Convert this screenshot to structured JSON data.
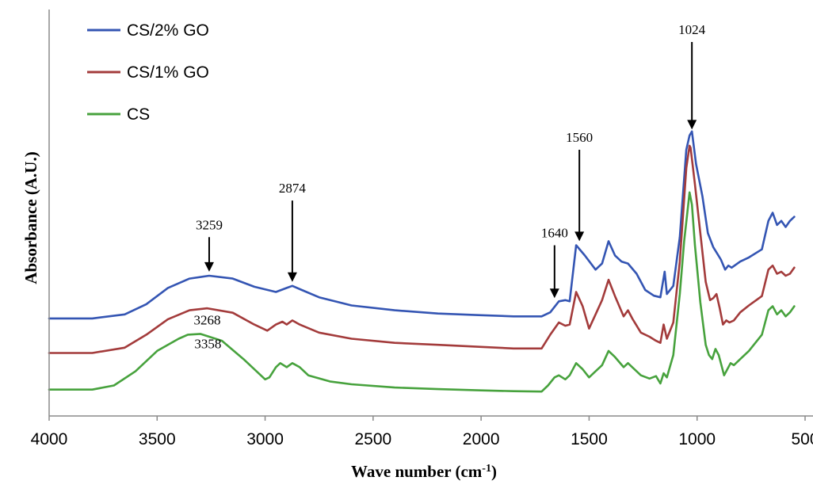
{
  "chart_data": {
    "type": "line",
    "xlabel": "Wave number  (cm",
    "xlabel_sup": "-1",
    "xlabel_close": ")",
    "ylabel": "Absorbance  (A.U.)",
    "xlim": [
      4000,
      500
    ],
    "x_reversed": true,
    "y_ticks_shown": false,
    "grid": false,
    "legend_position": "top-left",
    "x_ticks": [
      {
        "value": 4000,
        "label": "4000"
      },
      {
        "value": 3500,
        "label": "3500"
      },
      {
        "value": 3000,
        "label": "3000"
      },
      {
        "value": 2500,
        "label": "2500"
      },
      {
        "value": 2000,
        "label": "2000"
      },
      {
        "value": 1500,
        "label": "1500"
      },
      {
        "value": 1000,
        "label": "1000"
      },
      {
        "value": 500,
        "label": "500"
      }
    ],
    "series": [
      {
        "name": "CS/2% GO",
        "color": "#3455b3",
        "points": [
          [
            4000,
            0.24
          ],
          [
            3800,
            0.24
          ],
          [
            3650,
            0.25
          ],
          [
            3550,
            0.275
          ],
          [
            3450,
            0.315
          ],
          [
            3350,
            0.338
          ],
          [
            3259,
            0.345
          ],
          [
            3150,
            0.338
          ],
          [
            3050,
            0.318
          ],
          [
            2950,
            0.305
          ],
          [
            2900,
            0.315
          ],
          [
            2874,
            0.32
          ],
          [
            2830,
            0.31
          ],
          [
            2750,
            0.292
          ],
          [
            2600,
            0.272
          ],
          [
            2400,
            0.26
          ],
          [
            2200,
            0.252
          ],
          [
            2000,
            0.248
          ],
          [
            1850,
            0.245
          ],
          [
            1720,
            0.245
          ],
          [
            1680,
            0.255
          ],
          [
            1640,
            0.282
          ],
          [
            1610,
            0.285
          ],
          [
            1590,
            0.282
          ],
          [
            1560,
            0.42
          ],
          [
            1520,
            0.395
          ],
          [
            1470,
            0.36
          ],
          [
            1440,
            0.375
          ],
          [
            1410,
            0.43
          ],
          [
            1380,
            0.395
          ],
          [
            1350,
            0.38
          ],
          [
            1320,
            0.375
          ],
          [
            1280,
            0.35
          ],
          [
            1240,
            0.31
          ],
          [
            1200,
            0.296
          ],
          [
            1170,
            0.292
          ],
          [
            1150,
            0.355
          ],
          [
            1140,
            0.3
          ],
          [
            1110,
            0.32
          ],
          [
            1080,
            0.44
          ],
          [
            1050,
            0.655
          ],
          [
            1035,
            0.69
          ],
          [
            1024,
            0.7
          ],
          [
            1005,
            0.62
          ],
          [
            975,
            0.54
          ],
          [
            950,
            0.45
          ],
          [
            925,
            0.415
          ],
          [
            905,
            0.398
          ],
          [
            890,
            0.385
          ],
          [
            870,
            0.36
          ],
          [
            855,
            0.37
          ],
          [
            840,
            0.365
          ],
          [
            800,
            0.38
          ],
          [
            760,
            0.39
          ],
          [
            700,
            0.41
          ],
          [
            670,
            0.48
          ],
          [
            650,
            0.5
          ],
          [
            630,
            0.47
          ],
          [
            610,
            0.48
          ],
          [
            590,
            0.465
          ],
          [
            570,
            0.48
          ],
          [
            550,
            0.49
          ]
        ]
      },
      {
        "name": "CS/1% GO",
        "color": "#a33b3b",
        "points": [
          [
            4000,
            0.155
          ],
          [
            3800,
            0.155
          ],
          [
            3650,
            0.168
          ],
          [
            3550,
            0.2
          ],
          [
            3450,
            0.238
          ],
          [
            3350,
            0.26
          ],
          [
            3268,
            0.265
          ],
          [
            3150,
            0.254
          ],
          [
            3050,
            0.225
          ],
          [
            2990,
            0.21
          ],
          [
            2950,
            0.225
          ],
          [
            2920,
            0.232
          ],
          [
            2900,
            0.225
          ],
          [
            2874,
            0.235
          ],
          [
            2840,
            0.225
          ],
          [
            2750,
            0.205
          ],
          [
            2600,
            0.19
          ],
          [
            2400,
            0.18
          ],
          [
            2200,
            0.175
          ],
          [
            2000,
            0.17
          ],
          [
            1850,
            0.166
          ],
          [
            1720,
            0.166
          ],
          [
            1680,
            0.2
          ],
          [
            1640,
            0.23
          ],
          [
            1610,
            0.222
          ],
          [
            1590,
            0.225
          ],
          [
            1560,
            0.305
          ],
          [
            1530,
            0.27
          ],
          [
            1500,
            0.215
          ],
          [
            1470,
            0.25
          ],
          [
            1440,
            0.285
          ],
          [
            1410,
            0.335
          ],
          [
            1380,
            0.295
          ],
          [
            1340,
            0.245
          ],
          [
            1320,
            0.26
          ],
          [
            1300,
            0.24
          ],
          [
            1260,
            0.205
          ],
          [
            1220,
            0.195
          ],
          [
            1190,
            0.185
          ],
          [
            1170,
            0.18
          ],
          [
            1155,
            0.225
          ],
          [
            1140,
            0.19
          ],
          [
            1110,
            0.23
          ],
          [
            1080,
            0.38
          ],
          [
            1050,
            0.61
          ],
          [
            1035,
            0.665
          ],
          [
            1030,
            0.66
          ],
          [
            1010,
            0.57
          ],
          [
            985,
            0.45
          ],
          [
            960,
            0.33
          ],
          [
            940,
            0.285
          ],
          [
            925,
            0.29
          ],
          [
            910,
            0.3
          ],
          [
            895,
            0.265
          ],
          [
            880,
            0.225
          ],
          [
            865,
            0.235
          ],
          [
            850,
            0.23
          ],
          [
            830,
            0.235
          ],
          [
            800,
            0.255
          ],
          [
            760,
            0.272
          ],
          [
            700,
            0.295
          ],
          [
            670,
            0.36
          ],
          [
            650,
            0.37
          ],
          [
            630,
            0.35
          ],
          [
            610,
            0.355
          ],
          [
            590,
            0.345
          ],
          [
            570,
            0.35
          ],
          [
            550,
            0.365
          ]
        ]
      },
      {
        "name": "CS",
        "color": "#47a23d",
        "points": [
          [
            4000,
            0.065
          ],
          [
            3800,
            0.065
          ],
          [
            3700,
            0.075
          ],
          [
            3600,
            0.11
          ],
          [
            3500,
            0.16
          ],
          [
            3400,
            0.19
          ],
          [
            3358,
            0.2
          ],
          [
            3300,
            0.202
          ],
          [
            3200,
            0.185
          ],
          [
            3100,
            0.14
          ],
          [
            3000,
            0.09
          ],
          [
            2980,
            0.095
          ],
          [
            2950,
            0.12
          ],
          [
            2930,
            0.13
          ],
          [
            2900,
            0.12
          ],
          [
            2874,
            0.13
          ],
          [
            2840,
            0.12
          ],
          [
            2800,
            0.1
          ],
          [
            2700,
            0.085
          ],
          [
            2600,
            0.078
          ],
          [
            2400,
            0.07
          ],
          [
            2200,
            0.066
          ],
          [
            2000,
            0.063
          ],
          [
            1850,
            0.061
          ],
          [
            1720,
            0.06
          ],
          [
            1690,
            0.075
          ],
          [
            1660,
            0.095
          ],
          [
            1640,
            0.1
          ],
          [
            1610,
            0.09
          ],
          [
            1590,
            0.1
          ],
          [
            1560,
            0.13
          ],
          [
            1530,
            0.115
          ],
          [
            1500,
            0.095
          ],
          [
            1470,
            0.11
          ],
          [
            1440,
            0.125
          ],
          [
            1410,
            0.16
          ],
          [
            1380,
            0.145
          ],
          [
            1340,
            0.12
          ],
          [
            1320,
            0.13
          ],
          [
            1300,
            0.12
          ],
          [
            1260,
            0.1
          ],
          [
            1220,
            0.092
          ],
          [
            1190,
            0.098
          ],
          [
            1170,
            0.08
          ],
          [
            1155,
            0.105
          ],
          [
            1140,
            0.095
          ],
          [
            1110,
            0.15
          ],
          [
            1080,
            0.3
          ],
          [
            1060,
            0.43
          ],
          [
            1045,
            0.5
          ],
          [
            1035,
            0.55
          ],
          [
            1024,
            0.52
          ],
          [
            1010,
            0.42
          ],
          [
            985,
            0.28
          ],
          [
            960,
            0.175
          ],
          [
            945,
            0.15
          ],
          [
            930,
            0.14
          ],
          [
            915,
            0.165
          ],
          [
            900,
            0.15
          ],
          [
            885,
            0.12
          ],
          [
            875,
            0.1
          ],
          [
            860,
            0.115
          ],
          [
            845,
            0.13
          ],
          [
            830,
            0.125
          ],
          [
            800,
            0.14
          ],
          [
            760,
            0.16
          ],
          [
            700,
            0.2
          ],
          [
            670,
            0.26
          ],
          [
            650,
            0.27
          ],
          [
            630,
            0.25
          ],
          [
            610,
            0.26
          ],
          [
            590,
            0.245
          ],
          [
            570,
            0.255
          ],
          [
            550,
            0.27
          ]
        ]
      }
    ],
    "annotations": [
      {
        "label": "3259",
        "x": 3259,
        "arrow_tip_y": 0.355,
        "arrow_top_y": 0.44
      },
      {
        "label": "2874",
        "x": 2874,
        "arrow_tip_y": 0.33,
        "arrow_top_y": 0.53
      },
      {
        "label": "1640",
        "x": 1660,
        "arrow_tip_y": 0.29,
        "arrow_top_y": 0.42
      },
      {
        "label": "1560",
        "x": 1545,
        "arrow_tip_y": 0.43,
        "arrow_top_y": 0.655
      },
      {
        "label": "1024",
        "x": 1024,
        "arrow_tip_y": 0.705,
        "arrow_top_y": 0.92
      },
      {
        "label": "3268",
        "x": 3268,
        "arrow_tip_y": null,
        "arrow_top_y": null,
        "text_y": 0.225
      },
      {
        "label": "3358",
        "x": 3265,
        "arrow_tip_y": null,
        "arrow_top_y": null,
        "text_y": 0.167
      }
    ]
  }
}
